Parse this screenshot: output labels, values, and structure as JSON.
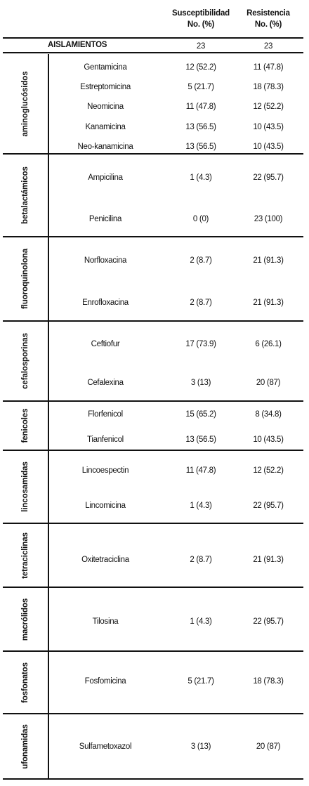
{
  "headers": {
    "susceptibility_line1": "Susceptibilidad",
    "susceptibility_line2": "No. (%)",
    "resistance_line1": "Resistencia",
    "resistance_line2": "No. (%)"
  },
  "isolates": {
    "label": "AISLAMIENTOS",
    "susceptibility": "23",
    "resistance": "23"
  },
  "groups": [
    {
      "name": "aminoglucósidos",
      "drugs": [
        {
          "name": "Gentamicina",
          "susceptibility": "12 (52.2)",
          "resistance": "11 (47.8)"
        },
        {
          "name": "Estreptomicina",
          "susceptibility": "5 (21.7)",
          "resistance": "18 (78.3)"
        },
        {
          "name": "Neomicina",
          "susceptibility": "11 (47.8)",
          "resistance": "12 (52.2)"
        },
        {
          "name": "Kanamicina",
          "susceptibility": "13 (56.5)",
          "resistance": "10 (43.5)"
        },
        {
          "name": "Neo-kanamicina",
          "susceptibility": "13 (56.5)",
          "resistance": "10 (43.5)"
        }
      ]
    },
    {
      "name": "betalactámicos",
      "drugs": [
        {
          "name": "Ampicilina",
          "susceptibility": "1 (4.3)",
          "resistance": "22 (95.7)"
        },
        {
          "name": "Penicilina",
          "susceptibility": "0 (0)",
          "resistance": "23 (100)"
        }
      ]
    },
    {
      "name": "fluoroquinolona",
      "drugs": [
        {
          "name": "Norfloxacina",
          "susceptibility": "2 (8.7)",
          "resistance": "21 (91.3)"
        },
        {
          "name": "Enrofloxacina",
          "susceptibility": "2 (8.7)",
          "resistance": "21 (91.3)"
        }
      ]
    },
    {
      "name": "cefalosporinas",
      "drugs": [
        {
          "name": "Ceftiofur",
          "susceptibility": "17 (73.9)",
          "resistance": "6 (26.1)"
        },
        {
          "name": "Cefalexina",
          "susceptibility": "3 (13)",
          "resistance": "20 (87)"
        }
      ]
    },
    {
      "name": "fenicoles",
      "drugs": [
        {
          "name": "Florfenicol",
          "susceptibility": "15 (65.2)",
          "resistance": "8 (34.8)"
        },
        {
          "name": "Tianfenicol",
          "susceptibility": "13 (56.5)",
          "resistance": "10 (43.5)"
        }
      ]
    },
    {
      "name": "lincosamidas",
      "drugs": [
        {
          "name": "Lincoespectin",
          "susceptibility": "11 (47.8)",
          "resistance": "12 (52.2)"
        },
        {
          "name": "Lincomicina",
          "susceptibility": "1 (4.3)",
          "resistance": "22 (95.7)"
        }
      ]
    },
    {
      "name": "tetraciclinas",
      "drugs": [
        {
          "name": "Oxitetraciclina",
          "susceptibility": "2 (8.7)",
          "resistance": "21 (91.3)"
        }
      ]
    },
    {
      "name": "macrólidos",
      "drugs": [
        {
          "name": "Tilosina",
          "susceptibility": "1 (4.3)",
          "resistance": "22 (95.7)"
        }
      ]
    },
    {
      "name": "fosfonatos",
      "drugs": [
        {
          "name": "Fosfomicina",
          "susceptibility": "5 (21.7)",
          "resistance": "18 (78.3)"
        }
      ]
    },
    {
      "name": "ufonamidas",
      "drugs": [
        {
          "name": "Sulfametoxazol",
          "susceptibility": "3 (13)",
          "resistance": "20 (87)"
        }
      ]
    }
  ]
}
